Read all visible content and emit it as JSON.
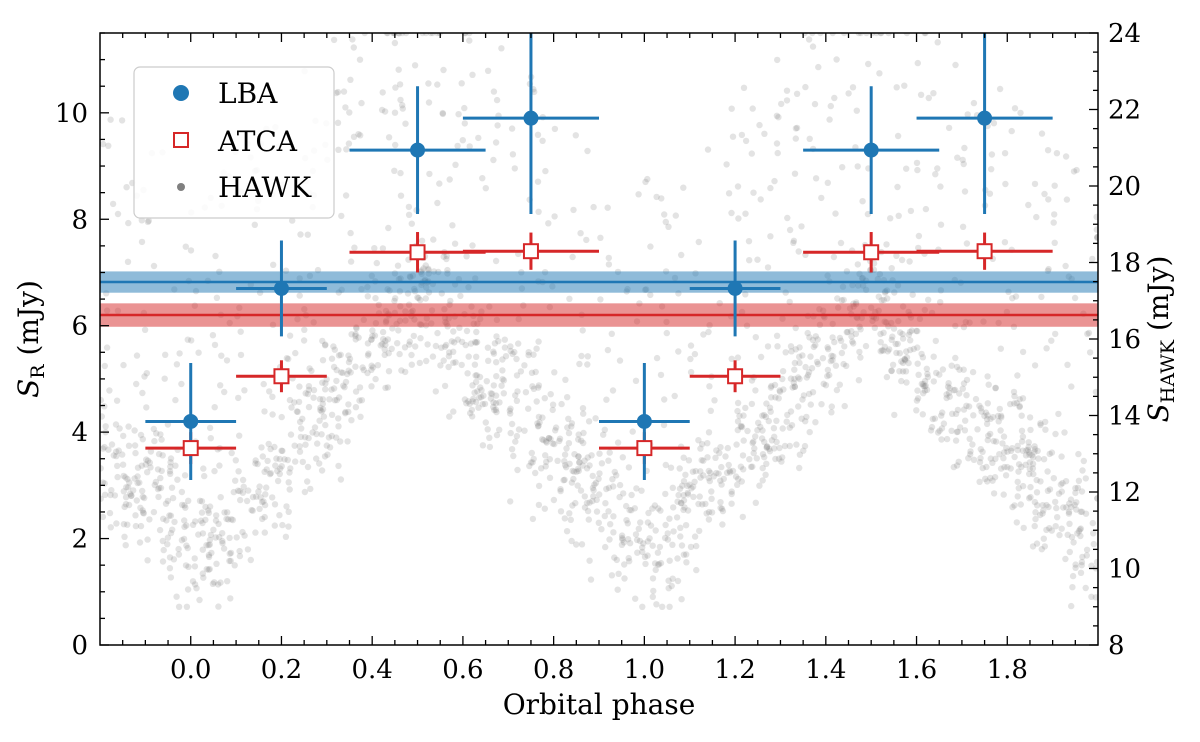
{
  "chart_data": {
    "type": "scatter",
    "xlabel": "Orbital phase",
    "ylabel_main": "S",
    "ylabel_sub": "R",
    "ylabel_unit": " (mJy)",
    "y2label_main": "S",
    "y2label_sub": "HAWK",
    "y2label_unit": " (mJy)",
    "xlim": [
      -0.2,
      2.0
    ],
    "ylim": [
      0,
      11.5
    ],
    "y2lim": [
      8,
      24
    ],
    "x_ticks": [
      0.0,
      0.2,
      0.4,
      0.6,
      0.8,
      1.0,
      1.2,
      1.4,
      1.6,
      1.8
    ],
    "x_tick_labels": [
      "0.0",
      "0.2",
      "0.4",
      "0.6",
      "0.8",
      "1.0",
      "1.2",
      "1.4",
      "1.6",
      "1.8"
    ],
    "y_ticks": [
      0,
      2,
      4,
      6,
      8,
      10
    ],
    "y_tick_labels": [
      "0",
      "2",
      "4",
      "6",
      "8",
      "10"
    ],
    "y2_ticks": [
      8,
      10,
      12,
      14,
      16,
      18,
      20,
      22,
      24
    ],
    "y2_tick_labels": [
      "8",
      "10",
      "12",
      "14",
      "16",
      "18",
      "20",
      "22",
      "24"
    ],
    "legend_position": "top-left",
    "colors": {
      "lba": "#1f77b4",
      "atca": "#d62728",
      "hawk": "#808080"
    },
    "series": [
      {
        "name": "LBA",
        "marker": "circle",
        "x": [
          0.0,
          0.2,
          0.5,
          0.75,
          1.0,
          1.2,
          1.5,
          1.75
        ],
        "y": [
          4.2,
          6.7,
          9.3,
          9.9,
          4.2,
          6.7,
          9.3,
          9.9
        ],
        "xerr": [
          0.1,
          0.1,
          0.15,
          0.15,
          0.1,
          0.1,
          0.15,
          0.15
        ],
        "yerr": [
          1.1,
          0.9,
          1.2,
          1.8,
          1.1,
          0.9,
          1.2,
          1.8
        ]
      },
      {
        "name": "ATCA",
        "marker": "open-square",
        "x": [
          0.0,
          0.2,
          0.5,
          0.75,
          1.0,
          1.2,
          1.5,
          1.75
        ],
        "y": [
          3.7,
          5.05,
          7.38,
          7.4,
          3.7,
          5.05,
          7.38,
          7.4
        ],
        "xerr": [
          0.1,
          0.1,
          0.15,
          0.15,
          0.1,
          0.1,
          0.15,
          0.15
        ],
        "yerr": [
          0.3,
          0.3,
          0.38,
          0.35,
          0.3,
          0.3,
          0.38,
          0.35
        ]
      },
      {
        "name": "HAWK",
        "marker": "small-dot",
        "x_range": [
          -0.2,
          2.0
        ],
        "y2_range": [
          9,
          24
        ],
        "count": 2200
      }
    ],
    "hlines": [
      {
        "series": "LBA",
        "y": 6.82,
        "band": [
          6.62,
          7.02
        ]
      },
      {
        "series": "ATCA",
        "y": 6.2,
        "band": [
          5.98,
          6.42
        ]
      }
    ]
  }
}
